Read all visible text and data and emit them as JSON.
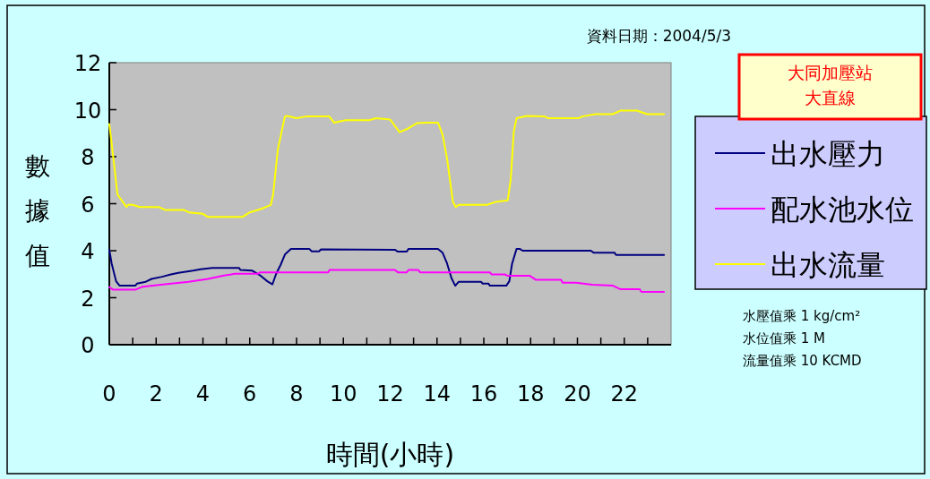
{
  "chart_data": {
    "type": "line",
    "title": "大同加壓站",
    "subtitle": "大直線",
    "xlabel": "時間(小時)",
    "ylabel": "數據值",
    "annotations": [
      "資料日期：2004/5/3",
      "水壓值乘 1 kg/cm²",
      "水位值乘 1 M",
      "流量值乘 10 KCMD"
    ],
    "xlim": [
      0,
      24
    ],
    "xticks": [
      0,
      {
        "value": 1,
        "label": null
      },
      2,
      {
        "value": 3,
        "label": null
      },
      4,
      {
        "value": 5,
        "label": null
      },
      6,
      {
        "value": 7,
        "label": null
      },
      8,
      {
        "value": 9,
        "label": null
      },
      10,
      {
        "value": 11,
        "label": null
      },
      12,
      {
        "value": 13,
        "label": null
      },
      14,
      {
        "value": 15,
        "label": null
      },
      16,
      {
        "value": 17,
        "label": null
      },
      18,
      {
        "value": 19,
        "label": null
      },
      20,
      {
        "value": 21,
        "label": null
      },
      22,
      {
        "value": 23,
        "label": null
      }
    ],
    "ylim": [
      0,
      12
    ],
    "yticks": [
      0,
      2,
      4,
      6,
      8,
      10,
      12
    ],
    "grid": false,
    "legend": "right",
    "marker": "none",
    "line_style": "solid",
    "series": [
      {
        "name": "出水壓力",
        "color": "#000080",
        "x": [
          0,
          0.1,
          0.29,
          0.44,
          1.11,
          1.18,
          1.56,
          1.81,
          2.25,
          2.63,
          2.95,
          3.58,
          3.9,
          4.4,
          5.54,
          5.6,
          6.11,
          6.43,
          6.75,
          6.97,
          7.13,
          7.32,
          7.51,
          7.76,
          8.54,
          8.65,
          8.96,
          9.05,
          12.2,
          12.33,
          12.71,
          12.78,
          14.04,
          14.24,
          14.43,
          14.62,
          14.78,
          14.93,
          15.88,
          15.95,
          16.2,
          16.26,
          16.96,
          17.09,
          17.21,
          17.4,
          17.53,
          17.66,
          20.57,
          20.7,
          21.59,
          21.65,
          23.7
        ],
        "values": [
          4.04,
          3.46,
          2.7,
          2.51,
          2.51,
          2.6,
          2.68,
          2.8,
          2.89,
          2.99,
          3.06,
          3.15,
          3.21,
          3.27,
          3.27,
          3.18,
          3.15,
          2.96,
          2.7,
          2.57,
          3.02,
          3.4,
          3.85,
          4.08,
          4.08,
          3.97,
          3.97,
          4.06,
          4.04,
          3.96,
          3.96,
          4.08,
          4.08,
          3.91,
          3.46,
          2.83,
          2.51,
          2.68,
          2.68,
          2.6,
          2.6,
          2.51,
          2.51,
          2.7,
          3.46,
          4.08,
          4.08,
          4.0,
          4.0,
          3.91,
          3.91,
          3.82,
          3.82
        ]
      },
      {
        "name": "配水池水位",
        "color": "#ff00ff",
        "x": [
          0,
          0.16,
          1.11,
          1.43,
          2.38,
          3.39,
          4.22,
          4.85,
          5.36,
          6.37,
          6.43,
          9.35,
          9.41,
          12.2,
          12.33,
          12.71,
          12.78,
          13.2,
          13.28,
          16.26,
          16.33,
          16.9,
          17.02,
          17.97,
          18.23,
          19.3,
          19.37,
          19.94,
          20.64,
          21.52,
          21.84,
          22.66,
          22.73,
          23.7
        ],
        "values": [
          2.45,
          2.34,
          2.34,
          2.47,
          2.57,
          2.68,
          2.8,
          2.93,
          3.02,
          3.02,
          3.08,
          3.08,
          3.18,
          3.18,
          3.08,
          3.08,
          3.18,
          3.18,
          3.08,
          3.08,
          2.99,
          2.99,
          2.93,
          2.93,
          2.76,
          2.76,
          2.64,
          2.64,
          2.55,
          2.51,
          2.36,
          2.36,
          2.25,
          2.25
        ]
      },
      {
        "name": "出水流量",
        "color": "#ffff00",
        "x": [
          0,
          0.1,
          0.35,
          0.73,
          0.8,
          1.0,
          1.3,
          2.1,
          2.4,
          3.2,
          3.4,
          4.0,
          4.2,
          5.7,
          6.0,
          6.5,
          6.9,
          7.0,
          7.2,
          7.5,
          7.6,
          8.0,
          8.4,
          9.4,
          9.6,
          10.1,
          11.1,
          11.4,
          12.0,
          12.4,
          12.7,
          13.16,
          13.6,
          14.04,
          14.24,
          14.43,
          14.68,
          14.8,
          14.93,
          16.14,
          16.52,
          17.02,
          17.15,
          17.28,
          17.4,
          17.85,
          18.6,
          18.73,
          20.06,
          20.2,
          20.76,
          21.5,
          21.84,
          22.54,
          22.98,
          23.7
        ],
        "values": [
          9.39,
          8.56,
          6.39,
          5.86,
          5.95,
          5.95,
          5.86,
          5.86,
          5.73,
          5.73,
          5.63,
          5.57,
          5.44,
          5.44,
          5.63,
          5.78,
          5.95,
          6.39,
          8.31,
          9.71,
          9.73,
          9.64,
          9.71,
          9.71,
          9.45,
          9.55,
          9.55,
          9.64,
          9.58,
          9.04,
          9.17,
          9.43,
          9.45,
          9.45,
          8.94,
          7.92,
          6.08,
          5.86,
          5.95,
          5.95,
          6.08,
          6.14,
          7.03,
          9.07,
          9.64,
          9.73,
          9.71,
          9.64,
          9.64,
          9.71,
          9.81,
          9.81,
          9.96,
          9.96,
          9.81,
          9.81
        ]
      }
    ]
  }
}
